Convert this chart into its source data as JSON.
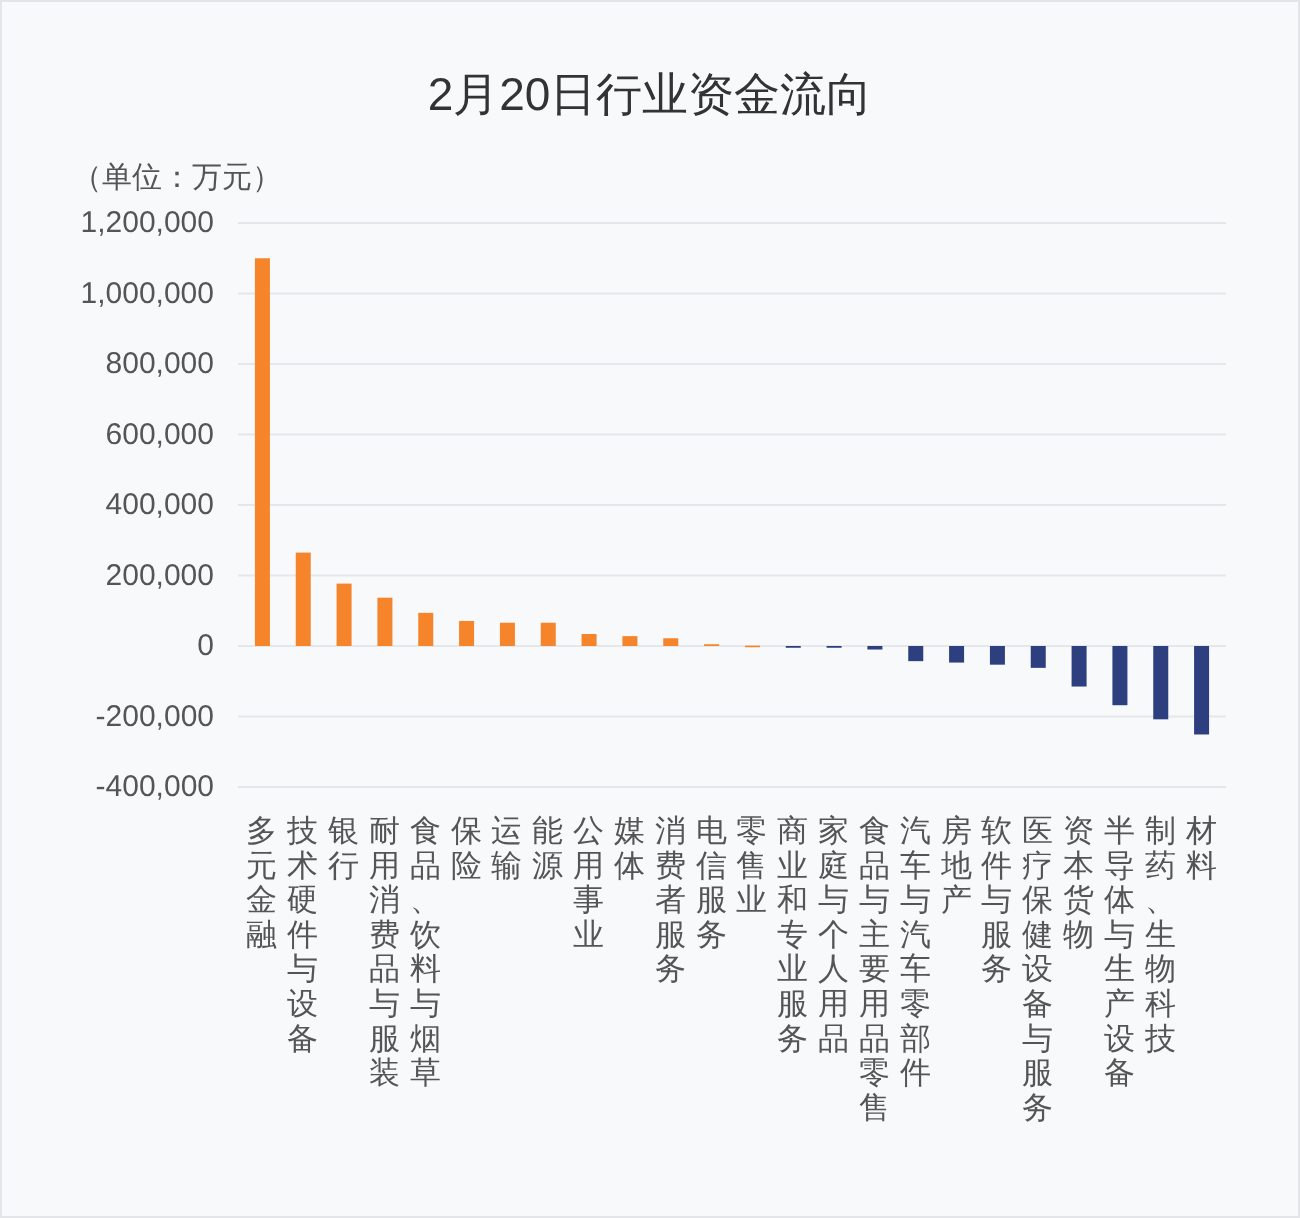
{
  "chart_data": {
    "type": "bar",
    "title": "2月20日行业资金流向",
    "ylabel": "（单位：万元）",
    "categories": [
      "多元金融",
      "技术硬件与设备",
      "银行",
      "耐用消费品与服装",
      "食品、饮料与烟草",
      "保险",
      "运输",
      "能源",
      "公用事业",
      "媒体",
      "消费者服务",
      "电信服务",
      "零售业",
      "商业和专业服务",
      "家庭与个人用品",
      "食品与主要用品零售",
      "汽车与汽车零部件",
      "房地产",
      "软件与服务",
      "医疗保健设备与服务",
      "资本货物",
      "半导体与生产设备",
      "制药、生物科技",
      "材料"
    ],
    "values": [
      1100000,
      265000,
      177000,
      137000,
      94000,
      71000,
      66000,
      66000,
      34000,
      28000,
      22000,
      5000,
      1000,
      -5000,
      -5000,
      -10000,
      -43000,
      -47000,
      -53000,
      -62000,
      -115000,
      -168000,
      -208000,
      -251000
    ],
    "colors": [
      "#f5842a",
      "#f5842a",
      "#f5842a",
      "#f5842a",
      "#f5842a",
      "#f5842a",
      "#f5842a",
      "#f5842a",
      "#f5842a",
      "#f5842a",
      "#f5842a",
      "#f5842a",
      "#f5842a",
      "#2e3f7f",
      "#2e3f7f",
      "#2e3f7f",
      "#2e3f7f",
      "#2e3f7f",
      "#2e3f7f",
      "#2e3f7f",
      "#2e3f7f",
      "#2e3f7f",
      "#2e3f7f",
      "#2e3f7f"
    ],
    "ylim": [
      -400000,
      1200000
    ],
    "yticks": [
      {
        "value": -400000,
        "label": "-400,000"
      },
      {
        "value": -200000,
        "label": "-200,000"
      },
      {
        "value": 0,
        "label": "0"
      },
      {
        "value": 200000,
        "label": "200,000"
      },
      {
        "value": 400000,
        "label": "400,000"
      },
      {
        "value": 600000,
        "label": "600,000"
      },
      {
        "value": 800000,
        "label": "800,000"
      },
      {
        "value": 1000000,
        "label": "1,000,000"
      },
      {
        "value": 1200000,
        "label": "1,200,000"
      }
    ],
    "grid": "y"
  }
}
